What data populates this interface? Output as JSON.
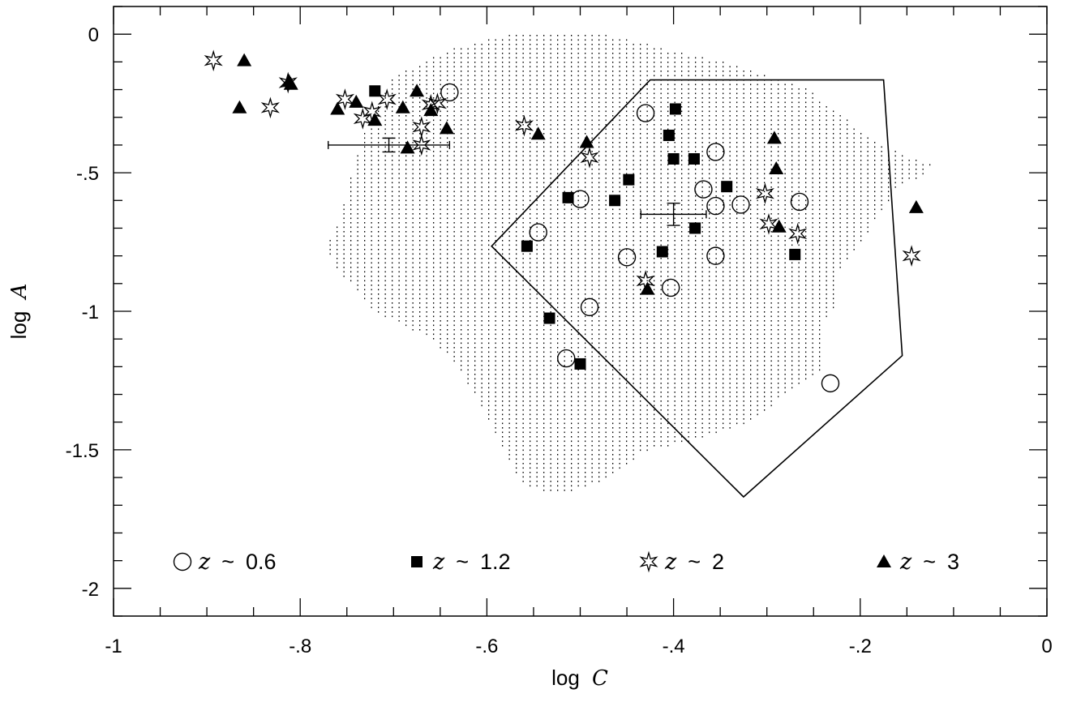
{
  "chart_data": {
    "type": "scatter",
    "xlabel_prefix": "log",
    "xlabel_var": "C",
    "ylabel_prefix": "log",
    "ylabel_var": "A",
    "xlim": [
      -1,
      0
    ],
    "ylim": [
      -2.1,
      0.1
    ],
    "x_ticks": [
      -1,
      -0.8,
      -0.6,
      -0.4,
      -0.2,
      0
    ],
    "x_tick_labels": [
      "-1",
      "-.8",
      "-.6",
      "-.4",
      "-.2",
      "0"
    ],
    "y_ticks": [
      0,
      -0.5,
      -1,
      -1.5,
      -2
    ],
    "y_tick_labels": [
      "0",
      "-.5",
      "-1",
      "-1.5",
      "-2"
    ],
    "grid": false,
    "legend_position": "bottom",
    "series": [
      {
        "name": "z ~ 0.6",
        "legend_var": "z",
        "legend_value": "0.6",
        "marker": "open-circle",
        "points": [
          [
            -0.64,
            -0.21
          ],
          [
            -0.43,
            -0.285
          ],
          [
            -0.355,
            -0.425
          ],
          [
            -0.368,
            -0.56
          ],
          [
            -0.355,
            -0.62
          ],
          [
            -0.328,
            -0.615
          ],
          [
            -0.265,
            -0.605
          ],
          [
            -0.5,
            -0.595
          ],
          [
            -0.545,
            -0.715
          ],
          [
            -0.45,
            -0.805
          ],
          [
            -0.355,
            -0.8
          ],
          [
            -0.403,
            -0.915
          ],
          [
            -0.49,
            -0.985
          ],
          [
            -0.515,
            -1.17
          ],
          [
            -0.232,
            -1.26
          ]
        ]
      },
      {
        "name": "z ~ 1.2",
        "legend_var": "z",
        "legend_value": "1.2",
        "marker": "filled-square",
        "points": [
          [
            -0.72,
            -0.205
          ],
          [
            -0.398,
            -0.27
          ],
          [
            -0.405,
            -0.365
          ],
          [
            -0.4,
            -0.45
          ],
          [
            -0.378,
            -0.45
          ],
          [
            -0.448,
            -0.525
          ],
          [
            -0.513,
            -0.59
          ],
          [
            -0.463,
            -0.6
          ],
          [
            -0.343,
            -0.55
          ],
          [
            -0.557,
            -0.765
          ],
          [
            -0.377,
            -0.7
          ],
          [
            -0.412,
            -0.785
          ],
          [
            -0.27,
            -0.795
          ],
          [
            -0.533,
            -1.025
          ],
          [
            -0.5,
            -1.19
          ]
        ]
      },
      {
        "name": "z ~ 2",
        "legend_var": "z",
        "legend_value": "2",
        "marker": "star",
        "points": [
          [
            -0.893,
            -0.095
          ],
          [
            -0.813,
            -0.175
          ],
          [
            -0.832,
            -0.265
          ],
          [
            -0.752,
            -0.235
          ],
          [
            -0.723,
            -0.28
          ],
          [
            -0.707,
            -0.235
          ],
          [
            -0.733,
            -0.305
          ],
          [
            -0.66,
            -0.255
          ],
          [
            -0.653,
            -0.25
          ],
          [
            -0.67,
            -0.335
          ],
          [
            -0.67,
            -0.4
          ],
          [
            -0.56,
            -0.33
          ],
          [
            -0.49,
            -0.445
          ],
          [
            -0.302,
            -0.575
          ],
          [
            -0.298,
            -0.685
          ],
          [
            -0.267,
            -0.72
          ],
          [
            -0.145,
            -0.8
          ],
          [
            -0.43,
            -0.89
          ]
        ]
      },
      {
        "name": "z ~ 3",
        "legend_var": "z",
        "legend_value": "3",
        "marker": "filled-triangle",
        "points": [
          [
            -0.86,
            -0.095
          ],
          [
            -0.812,
            -0.17
          ],
          [
            -0.81,
            -0.18
          ],
          [
            -0.865,
            -0.265
          ],
          [
            -0.76,
            -0.27
          ],
          [
            -0.74,
            -0.245
          ],
          [
            -0.72,
            -0.31
          ],
          [
            -0.69,
            -0.265
          ],
          [
            -0.675,
            -0.205
          ],
          [
            -0.66,
            -0.275
          ],
          [
            -0.643,
            -0.34
          ],
          [
            -0.685,
            -0.41
          ],
          [
            -0.545,
            -0.36
          ],
          [
            -0.493,
            -0.39
          ],
          [
            -0.292,
            -0.375
          ],
          [
            -0.29,
            -0.485
          ],
          [
            -0.287,
            -0.695
          ],
          [
            -0.428,
            -0.92
          ],
          [
            -0.14,
            -0.625
          ]
        ]
      }
    ],
    "error_bars": [
      {
        "x": -0.705,
        "y": -0.4,
        "x_err_low": 0.065,
        "x_err_high": 0.065,
        "y_err": 0.025
      },
      {
        "x": -0.4,
        "y": -0.65,
        "x_err_low": 0.035,
        "x_err_high": 0.035,
        "y_err": 0.04
      }
    ],
    "dotted_region": [
      [
        -0.575,
        0.0
      ],
      [
        -0.47,
        0.0
      ],
      [
        -0.32,
        -0.12
      ],
      [
        -0.255,
        -0.2
      ],
      [
        -0.18,
        -0.4
      ],
      [
        -0.125,
        -0.465
      ],
      [
        -0.13,
        -0.5
      ],
      [
        -0.16,
        -0.55
      ],
      [
        -0.2,
        -0.75
      ],
      [
        -0.225,
        -0.86
      ],
      [
        -0.225,
        -0.97
      ],
      [
        -0.24,
        -1.03
      ],
      [
        -0.24,
        -1.2
      ],
      [
        -0.28,
        -1.3
      ],
      [
        -0.32,
        -1.4
      ],
      [
        -0.38,
        -1.47
      ],
      [
        -0.43,
        -1.5
      ],
      [
        -0.48,
        -1.62
      ],
      [
        -0.53,
        -1.66
      ],
      [
        -0.565,
        -1.62
      ],
      [
        -0.59,
        -1.45
      ],
      [
        -0.63,
        -1.2
      ],
      [
        -0.66,
        -1.1
      ],
      [
        -0.72,
        -1.0
      ],
      [
        -0.76,
        -0.85
      ],
      [
        -0.775,
        -0.77
      ],
      [
        -0.76,
        -0.68
      ],
      [
        -0.745,
        -0.5
      ],
      [
        -0.73,
        -0.33
      ],
      [
        -0.7,
        -0.15
      ],
      [
        -0.64,
        -0.05
      ]
    ],
    "polygon": [
      [
        -0.595,
        -0.765
      ],
      [
        -0.425,
        -0.165
      ],
      [
        -0.175,
        -0.165
      ],
      [
        -0.155,
        -1.16
      ],
      [
        -0.325,
        -1.67
      ]
    ]
  }
}
